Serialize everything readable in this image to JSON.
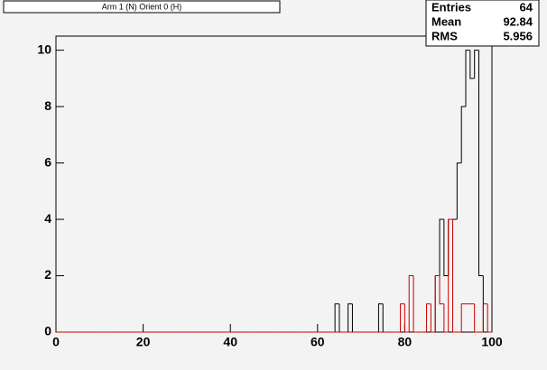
{
  "chart_data": {
    "type": "histogram",
    "title": "Arm 1 (N) Orient 0 (H)",
    "bins": [
      0,
      1,
      2,
      3,
      4,
      5,
      6,
      7,
      8,
      9,
      10,
      11,
      12,
      13,
      14,
      15,
      16,
      17,
      18,
      19,
      20,
      21,
      22,
      23,
      24,
      25,
      26,
      27,
      28,
      29,
      30,
      31,
      32,
      33,
      34,
      35,
      36,
      37,
      38,
      39,
      40,
      41,
      42,
      43,
      44,
      45,
      46,
      47,
      48,
      49,
      50,
      51,
      52,
      53,
      54,
      55,
      56,
      57,
      58,
      59,
      60,
      61,
      62,
      63,
      64,
      65,
      66,
      67,
      68,
      69,
      70,
      71,
      72,
      73,
      74,
      75,
      76,
      77,
      78,
      79,
      80,
      81,
      82,
      83,
      84,
      85,
      86,
      87,
      88,
      89,
      90,
      91,
      92,
      93,
      94,
      95,
      96,
      97,
      98,
      99,
      100
    ],
    "series": [
      {
        "color": "#000000",
        "values": [
          0,
          0,
          0,
          0,
          0,
          0,
          0,
          0,
          0,
          0,
          0,
          0,
          0,
          0,
          0,
          0,
          0,
          0,
          0,
          0,
          0,
          0,
          0,
          0,
          0,
          0,
          0,
          0,
          0,
          0,
          0,
          0,
          0,
          0,
          0,
          0,
          0,
          0,
          0,
          0,
          0,
          0,
          0,
          0,
          0,
          0,
          0,
          0,
          0,
          0,
          0,
          0,
          0,
          0,
          0,
          0,
          0,
          0,
          0,
          0,
          0,
          0,
          0,
          0,
          1,
          0,
          0,
          1,
          0,
          0,
          0,
          0,
          0,
          0,
          1,
          0,
          0,
          0,
          0,
          0,
          0,
          0,
          0,
          0,
          0,
          0,
          0,
          2,
          4,
          2,
          4,
          4,
          6,
          8,
          10,
          9,
          10,
          2,
          0,
          0
        ]
      },
      {
        "color": "#cc0000",
        "values": [
          0,
          0,
          0,
          0,
          0,
          0,
          0,
          0,
          0,
          0,
          0,
          0,
          0,
          0,
          0,
          0,
          0,
          0,
          0,
          0,
          0,
          0,
          0,
          0,
          0,
          0,
          0,
          0,
          0,
          0,
          0,
          0,
          0,
          0,
          0,
          0,
          0,
          0,
          0,
          0,
          0,
          0,
          0,
          0,
          0,
          0,
          0,
          0,
          0,
          0,
          0,
          0,
          0,
          0,
          0,
          0,
          0,
          0,
          0,
          0,
          0,
          0,
          0,
          0,
          0,
          0,
          0,
          0,
          0,
          0,
          0,
          0,
          0,
          0,
          0,
          0,
          0,
          0,
          0,
          1,
          0,
          2,
          0,
          0,
          0,
          1,
          0,
          2,
          1,
          0,
          4,
          0,
          0,
          1,
          1,
          1,
          0,
          0,
          1,
          0
        ]
      }
    ],
    "xlim": [
      0,
      100
    ],
    "xticks": [
      0,
      20,
      40,
      60,
      80,
      100
    ],
    "ylim": [
      0,
      10.5
    ],
    "yticks": [
      0,
      2,
      4,
      6,
      8,
      10
    ],
    "stats": [
      {
        "label": "Entries",
        "value": 64
      },
      {
        "label": "Mean",
        "value": 92.84
      },
      {
        "label": "RMS",
        "value": 5.956
      }
    ]
  }
}
